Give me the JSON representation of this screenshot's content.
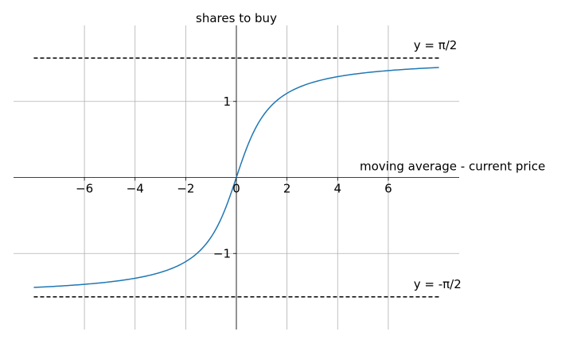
{
  "chart_data": {
    "type": "line",
    "title": "",
    "xlabel": "moving average - current price",
    "ylabel": "shares to buy",
    "xlim": [
      -8.8,
      8.8
    ],
    "ylim": [
      -2.0,
      2.0
    ],
    "grid": true,
    "spines": "centered",
    "x_ticks": [
      {
        "value": -6,
        "label": "−6"
      },
      {
        "value": -4,
        "label": "−4"
      },
      {
        "value": -2,
        "label": "−2"
      },
      {
        "value": 0,
        "label": "0"
      },
      {
        "value": 2,
        "label": "2"
      },
      {
        "value": 4,
        "label": "4"
      },
      {
        "value": 6,
        "label": "6"
      }
    ],
    "y_ticks": [
      {
        "value": 1,
        "label": "1"
      },
      {
        "value": -1,
        "label": "−1"
      }
    ],
    "series": [
      {
        "function": "arctan",
        "color": "#1f77b4",
        "x": [
          -8,
          -7,
          -6,
          -5,
          -4,
          -3,
          -2.5,
          -2,
          -1.5,
          -1,
          -0.75,
          -0.5,
          -0.25,
          0,
          0.25,
          0.5,
          0.75,
          1,
          1.5,
          2,
          2.5,
          3,
          4,
          5,
          6,
          7,
          8
        ],
        "y": [
          -1.446,
          -1.429,
          -1.406,
          -1.373,
          -1.326,
          -1.249,
          -1.19,
          -1.107,
          -0.983,
          -0.785,
          -0.644,
          -0.464,
          -0.245,
          0,
          0.245,
          0.464,
          0.644,
          0.785,
          0.983,
          1.107,
          1.19,
          1.249,
          1.326,
          1.373,
          1.406,
          1.429,
          1.446
        ]
      }
    ],
    "reference_lines": [
      {
        "y": 1.5708,
        "label": "y = π/2",
        "style": "dashed",
        "color": "#000000"
      },
      {
        "y": -1.5708,
        "label": "y = -π/2",
        "style": "dashed",
        "color": "#000000"
      }
    ]
  }
}
